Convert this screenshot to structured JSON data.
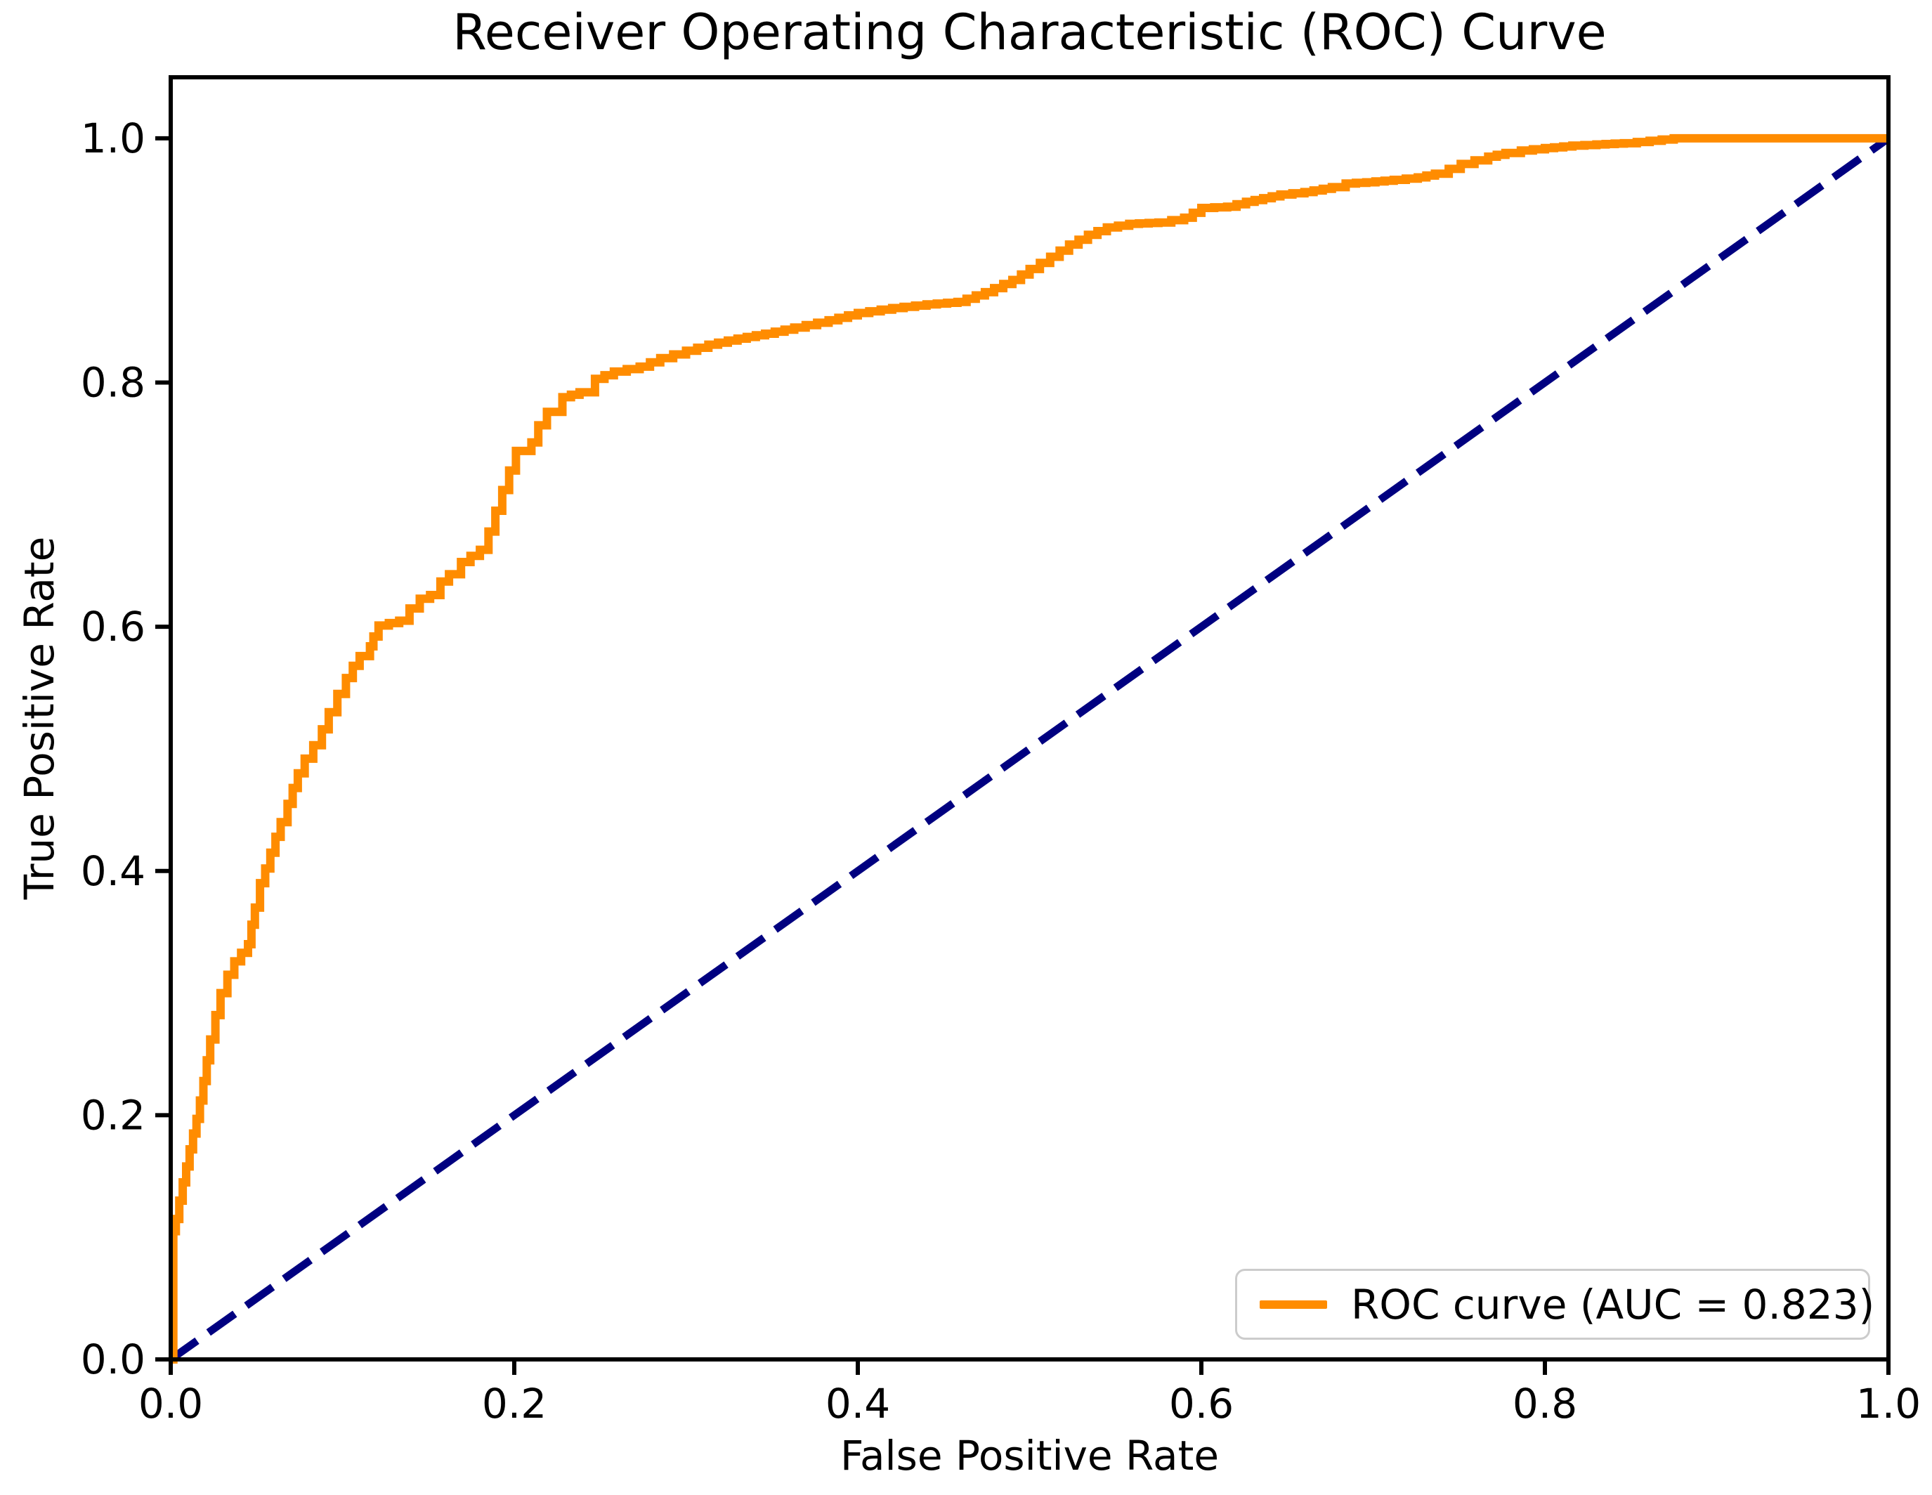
{
  "title": "Receiver Operating Characteristic (ROC) Curve",
  "axes": {
    "xlabel": "False Positive Rate",
    "ylabel": "True Positive Rate",
    "x_ticks": [
      "0.0",
      "0.2",
      "0.4",
      "0.6",
      "0.8",
      "1.0"
    ],
    "y_ticks": [
      "0.0",
      "0.2",
      "0.4",
      "0.6",
      "0.8",
      "1.0"
    ]
  },
  "legend": {
    "label": "ROC curve (AUC = 0.823)",
    "position": "lower right"
  },
  "colors": {
    "roc_curve": "#FF8C00",
    "diagonal": "#000080",
    "frame": "#000000",
    "tick_text": "#000000",
    "legend_border": "#CCCCCC",
    "background": "#FFFFFF"
  },
  "chart_data": {
    "type": "line",
    "title": "Receiver Operating Characteristic (ROC) Curve",
    "xlabel": "False Positive Rate",
    "ylabel": "True Positive Rate",
    "xlim": [
      0,
      1
    ],
    "ylim": [
      0,
      1.05
    ],
    "x_ticks": [
      0,
      0.2,
      0.4,
      0.6,
      0.8,
      1.0
    ],
    "y_ticks": [
      0,
      0.2,
      0.4,
      0.6,
      0.8,
      1.0
    ],
    "grid": false,
    "legend_position": "lower right",
    "auc": 0.823,
    "series": [
      {
        "name": "ROC curve (AUC = 0.823)",
        "style": "step",
        "color": "#FF8C00",
        "linewidth": 12,
        "points": [
          [
            0,
            0
          ],
          [
            0.0015,
            0.105
          ],
          [
            0.003,
            0.115
          ],
          [
            0.005,
            0.13
          ],
          [
            0.007,
            0.145
          ],
          [
            0.009,
            0.158
          ],
          [
            0.011,
            0.172
          ],
          [
            0.013,
            0.185
          ],
          [
            0.015,
            0.197
          ],
          [
            0.017,
            0.212
          ],
          [
            0.019,
            0.228
          ],
          [
            0.021,
            0.245
          ],
          [
            0.023,
            0.262
          ],
          [
            0.026,
            0.282
          ],
          [
            0.029,
            0.3
          ],
          [
            0.033,
            0.315
          ],
          [
            0.037,
            0.326
          ],
          [
            0.041,
            0.333
          ],
          [
            0.045,
            0.34
          ],
          [
            0.047,
            0.356
          ],
          [
            0.049,
            0.37
          ],
          [
            0.052,
            0.39
          ],
          [
            0.055,
            0.402
          ],
          [
            0.058,
            0.415
          ],
          [
            0.061,
            0.428
          ],
          [
            0.064,
            0.44
          ],
          [
            0.068,
            0.455
          ],
          [
            0.071,
            0.468
          ],
          [
            0.074,
            0.48
          ],
          [
            0.078,
            0.492
          ],
          [
            0.083,
            0.503
          ],
          [
            0.088,
            0.516
          ],
          [
            0.092,
            0.53
          ],
          [
            0.097,
            0.545
          ],
          [
            0.102,
            0.558
          ],
          [
            0.106,
            0.568
          ],
          [
            0.11,
            0.576
          ],
          [
            0.116,
            0.584
          ],
          [
            0.118,
            0.592
          ],
          [
            0.121,
            0.601
          ],
          [
            0.133,
            0.605
          ],
          [
            0.139,
            0.615
          ],
          [
            0.145,
            0.623
          ],
          [
            0.151,
            0.626
          ],
          [
            0.157,
            0.637
          ],
          [
            0.162,
            0.643
          ],
          [
            0.169,
            0.653
          ],
          [
            0.18,
            0.663
          ],
          [
            0.185,
            0.678
          ],
          [
            0.189,
            0.695
          ],
          [
            0.193,
            0.712
          ],
          [
            0.197,
            0.728
          ],
          [
            0.201,
            0.744
          ],
          [
            0.21,
            0.751
          ],
          [
            0.214,
            0.765
          ],
          [
            0.219,
            0.776
          ],
          [
            0.228,
            0.788
          ],
          [
            0.238,
            0.792
          ],
          [
            0.247,
            0.803
          ],
          [
            0.258,
            0.809
          ],
          [
            0.273,
            0.813
          ],
          [
            0.285,
            0.82
          ],
          [
            0.3,
            0.826
          ],
          [
            0.313,
            0.831
          ],
          [
            0.33,
            0.836
          ],
          [
            0.346,
            0.84
          ],
          [
            0.363,
            0.845
          ],
          [
            0.383,
            0.851
          ],
          [
            0.4,
            0.857
          ],
          [
            0.42,
            0.861
          ],
          [
            0.44,
            0.864
          ],
          [
            0.458,
            0.866
          ],
          [
            0.474,
            0.874
          ],
          [
            0.49,
            0.884
          ],
          [
            0.5,
            0.893
          ],
          [
            0.512,
            0.903
          ],
          [
            0.523,
            0.913
          ],
          [
            0.534,
            0.921
          ],
          [
            0.545,
            0.927
          ],
          [
            0.558,
            0.93
          ],
          [
            0.575,
            0.931
          ],
          [
            0.59,
            0.935
          ],
          [
            0.6,
            0.943
          ],
          [
            0.615,
            0.944
          ],
          [
            0.626,
            0.948
          ],
          [
            0.636,
            0.951
          ],
          [
            0.646,
            0.954
          ],
          [
            0.66,
            0.956
          ],
          [
            0.676,
            0.96
          ],
          [
            0.684,
            0.963
          ],
          [
            0.696,
            0.964
          ],
          [
            0.712,
            0.966
          ],
          [
            0.726,
            0.968
          ],
          [
            0.736,
            0.971
          ],
          [
            0.744,
            0.975
          ],
          [
            0.751,
            0.979
          ],
          [
            0.759,
            0.982
          ],
          [
            0.767,
            0.985
          ],
          [
            0.777,
            0.988
          ],
          [
            0.786,
            0.99
          ],
          [
            0.8,
            0.992
          ],
          [
            0.816,
            0.994
          ],
          [
            0.83,
            0.995
          ],
          [
            0.846,
            0.996
          ],
          [
            0.861,
            0.998
          ],
          [
            0.875,
            1.0
          ],
          [
            0.92,
            1.0
          ],
          [
            0.96,
            1.0
          ],
          [
            1.0,
            1.0
          ]
        ]
      },
      {
        "name": "chance-diagonal",
        "style": "dashed",
        "color": "#000080",
        "linewidth": 11,
        "dash": [
          46,
          20
        ],
        "points": [
          [
            0,
            0
          ],
          [
            1,
            1
          ]
        ]
      }
    ]
  }
}
